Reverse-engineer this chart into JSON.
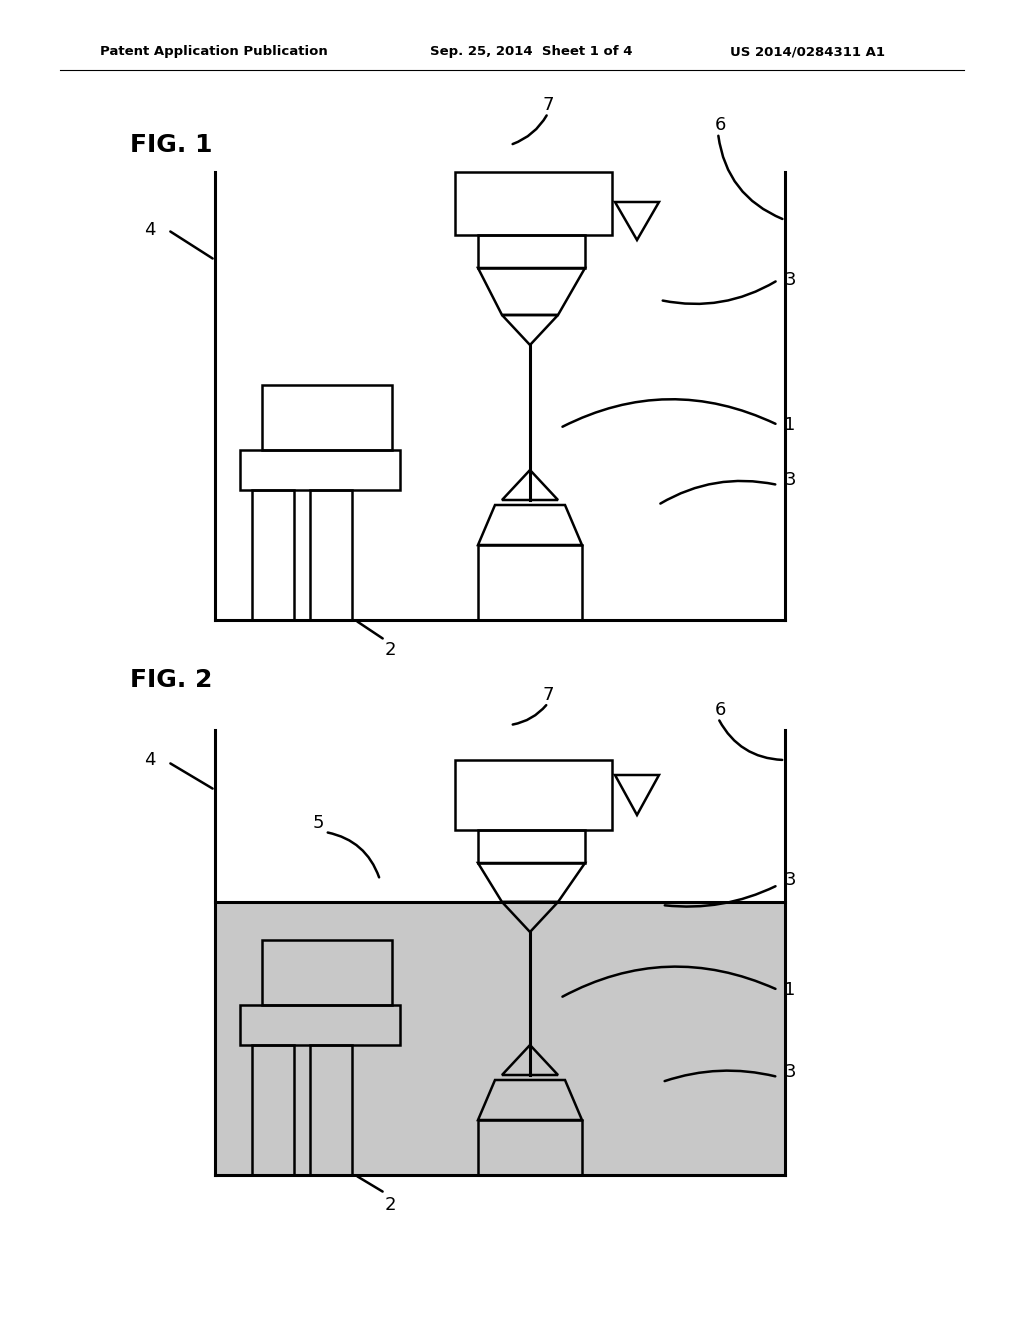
{
  "bg_color": "#ffffff",
  "line_color": "#000000",
  "water_color": "#c8c8c8",
  "lw": 1.8,
  "lw_thick": 2.2,
  "header_left": "Patent Application Publication",
  "header_mid": "Sep. 25, 2014  Sheet 1 of 4",
  "header_right": "US 2014/0284311 A1",
  "fig1_label": "FIG. 1",
  "fig2_label": "FIG. 2"
}
